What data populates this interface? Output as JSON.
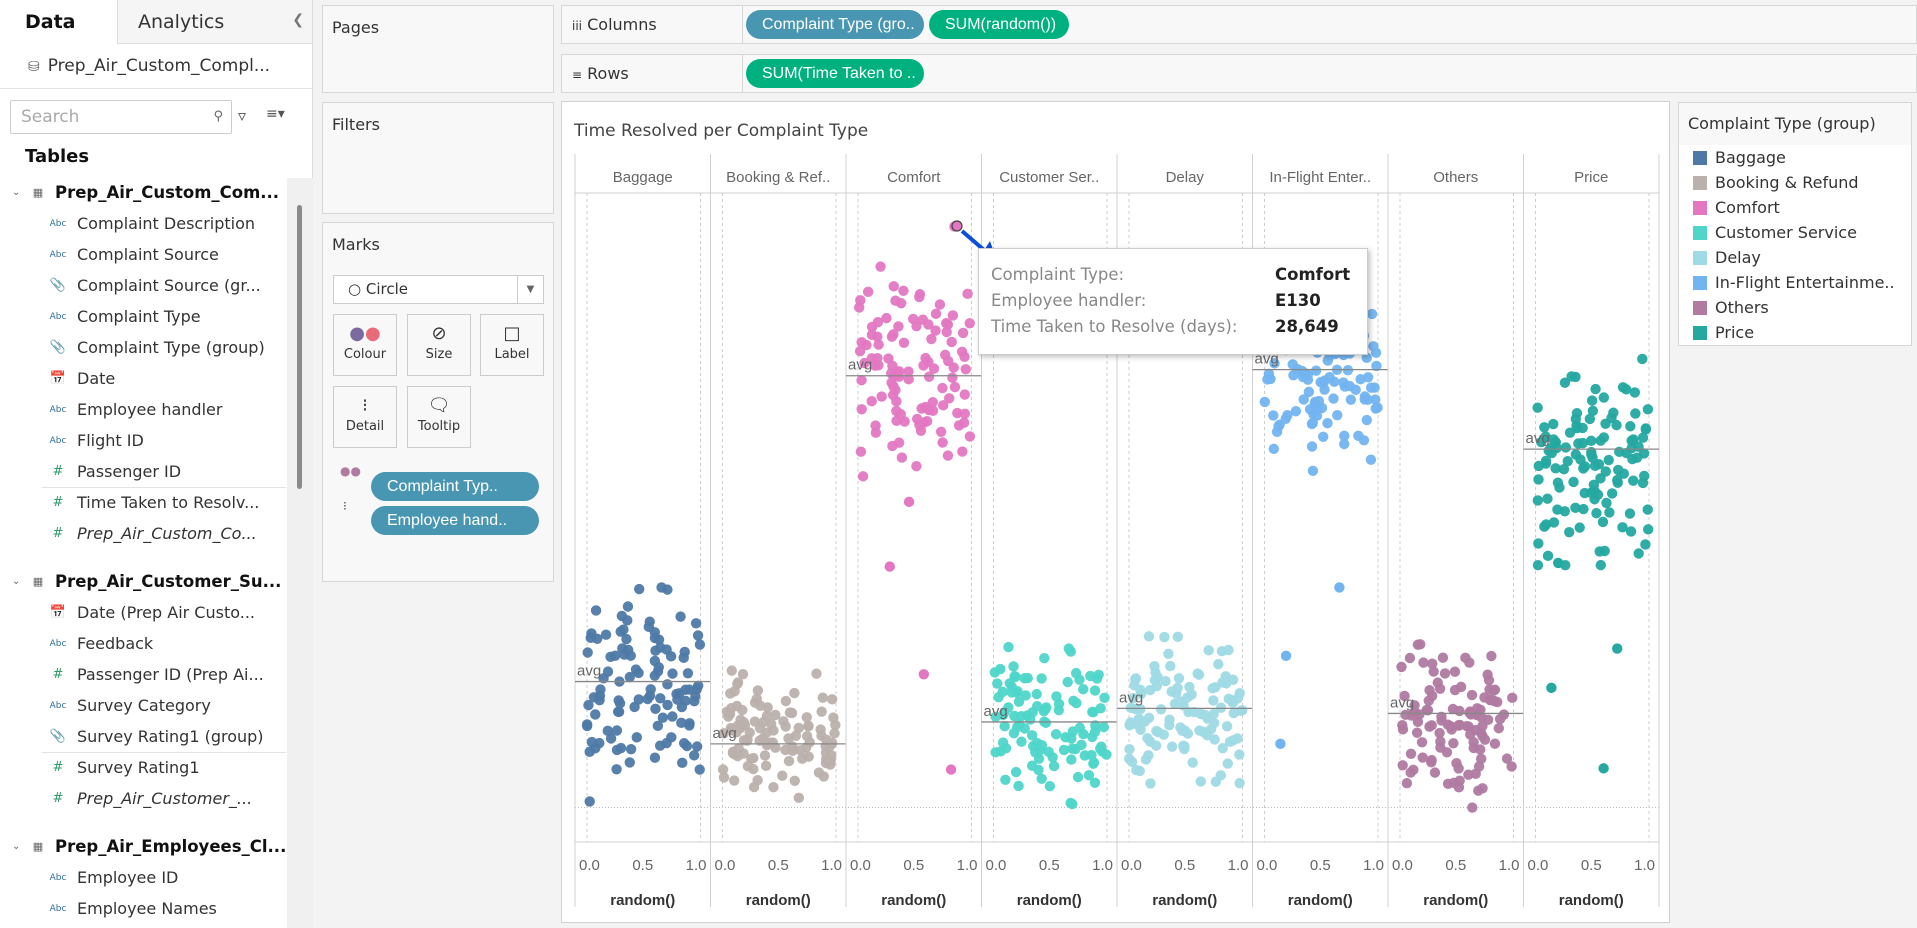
{
  "left_panel": {
    "tabs": {
      "data": "Data",
      "analytics": "Analytics"
    },
    "datasource": "Prep_Air_Custom_Compl...",
    "search_placeholder": "Search",
    "tables_label": "Tables",
    "tables": [
      {
        "name": "Prep_Air_Custom_Com...",
        "fields": [
          {
            "icon": "Abc",
            "name": "Complaint Description"
          },
          {
            "icon": "Abc",
            "name": "Complaint Source"
          },
          {
            "icon": "paperclip",
            "name": "Complaint Source (gr..."
          },
          {
            "icon": "Abc",
            "name": "Complaint Type"
          },
          {
            "icon": "paperclip",
            "name": "Complaint Type (group)"
          },
          {
            "icon": "calendar",
            "name": "Date"
          },
          {
            "icon": "Abc",
            "name": "Employee handler"
          },
          {
            "icon": "Abc",
            "name": "Flight ID"
          },
          {
            "icon": "#",
            "name": "Passenger ID",
            "sep_after": true
          },
          {
            "icon": "#",
            "name": "Time Taken to Resolv..."
          },
          {
            "icon": "#",
            "name": "Prep_Air_Custom_Co...",
            "italic": true
          }
        ]
      },
      {
        "name": "Prep_Air_Customer_Su...",
        "fields": [
          {
            "icon": "calendar",
            "name": "Date (Prep Air Custo..."
          },
          {
            "icon": "Abc",
            "name": "Feedback"
          },
          {
            "icon": "#",
            "name": "Passenger ID (Prep Ai..."
          },
          {
            "icon": "Abc",
            "name": "Survey Category"
          },
          {
            "icon": "paperclip",
            "name": "Survey Rating1 (group)",
            "sep_after": true
          },
          {
            "icon": "#",
            "name": "Survey Rating1"
          },
          {
            "icon": "#",
            "name": "Prep_Air_Customer_...",
            "italic": true
          }
        ]
      },
      {
        "name": "Prep_Air_Employees_Cl...",
        "fields": [
          {
            "icon": "Abc",
            "name": "Employee ID"
          },
          {
            "icon": "Abc",
            "name": "Employee Names"
          }
        ]
      }
    ]
  },
  "pages": {
    "title": "Pages"
  },
  "filters": {
    "title": "Filters"
  },
  "marks": {
    "title": "Marks",
    "type": "Circle",
    "buttons": [
      "Colour",
      "Size",
      "Label",
      "Detail",
      "Tooltip"
    ],
    "pills": [
      {
        "icon": "colour",
        "label": "Complaint Typ.."
      },
      {
        "icon": "detail",
        "label": "Employee hand.."
      }
    ]
  },
  "shelves": {
    "columns_label": "Columns",
    "rows_label": "Rows",
    "columns": [
      "Complaint Type (gro..",
      "SUM(random())"
    ],
    "rows": [
      "SUM(Time Taken to .."
    ]
  },
  "legend": {
    "title": "Complaint Type (group)",
    "items": [
      {
        "label": "Baggage",
        "color": "#4e79a7"
      },
      {
        "label": "Booking & Refund",
        "color": "#bab0ac"
      },
      {
        "label": "Comfort",
        "color": "#e377c2"
      },
      {
        "label": "Customer Service",
        "color": "#4fd6c9"
      },
      {
        "label": "Delay",
        "color": "#9fdae5"
      },
      {
        "label": "In-Flight Entertainme..",
        "color": "#72b4f0"
      },
      {
        "label": "Others",
        "color": "#b07aa1"
      },
      {
        "label": "Price",
        "color": "#24a8a0"
      }
    ]
  },
  "tooltip": {
    "rows": [
      {
        "label": "Complaint Type:",
        "value": "Comfort"
      },
      {
        "label": "Employee handler:",
        "value": "E130"
      },
      {
        "label": "Time Taken to Resolve (days):",
        "value": "28,649"
      }
    ]
  },
  "chart_data": {
    "type": "scatter",
    "title": "Time Resolved per Complaint Type",
    "xlabel": "random()",
    "ylabel": "Time Taken to Resolve (days)",
    "panes": [
      "Baggage",
      "Booking & Ref..",
      "Comfort",
      "Customer Ser..",
      "Delay",
      "In-Flight Enter..",
      "Others",
      "Price"
    ],
    "xlim": [
      0,
      1
    ],
    "xticks": [
      "0.0",
      "0.5",
      "1.0"
    ],
    "ylim": [
      -1700,
      30300
    ],
    "reference_line_label": "avg",
    "series": [
      {
        "name": "Baggage",
        "color": "#4e79a7",
        "n": 110,
        "y_range": [
          300,
          10850
        ],
        "avg": 6210,
        "outliers": []
      },
      {
        "name": "Booking & Refund",
        "color": "#bab0ac",
        "n": 110,
        "y_range": [
          0,
          6750
        ],
        "avg": 3140,
        "outliers": []
      },
      {
        "name": "Comfort",
        "color": "#e377c2",
        "n": 110,
        "y_range": [
          15680,
          27560
        ],
        "avg": 21290,
        "outliers": [
          [
            0.58,
            6570
          ],
          [
            0.82,
            1870
          ],
          [
            0.28,
            11880
          ],
          [
            0.45,
            15070
          ],
          [
            0.85,
            28649
          ]
        ]
      },
      {
        "name": "Customer Service",
        "color": "#4fd6c9",
        "n": 110,
        "y_range": [
          0,
          8320
        ],
        "avg": 4220,
        "outliers": []
      },
      {
        "name": "Delay",
        "color": "#9fdae5",
        "n": 110,
        "y_range": [
          120,
          8440
        ],
        "avg": 4890,
        "outliers": []
      },
      {
        "name": "In-Flight Entertainment",
        "color": "#72b4f0",
        "n": 100,
        "y_range": [
          16280,
          25330
        ],
        "avg": 21590,
        "outliers": [
          [
            0.19,
            7480
          ],
          [
            0.14,
            3140
          ],
          [
            0.66,
            10850
          ]
        ]
      },
      {
        "name": "Others",
        "color": "#b07aa1",
        "n": 110,
        "y_range": [
          0,
          8320
        ],
        "avg": 4640,
        "outliers": []
      },
      {
        "name": "Price",
        "color": "#24a8a0",
        "n": 120,
        "y_range": [
          11460,
          22130
        ],
        "avg": 17670,
        "outliers": [
          [
            0.14,
            5900
          ],
          [
            0.6,
            1930
          ],
          [
            0.72,
            7840
          ],
          [
            0.2,
            12060
          ]
        ]
      }
    ],
    "highlighted_point": {
      "pane": "Comfort",
      "x": 0.85,
      "y": 28649
    }
  }
}
